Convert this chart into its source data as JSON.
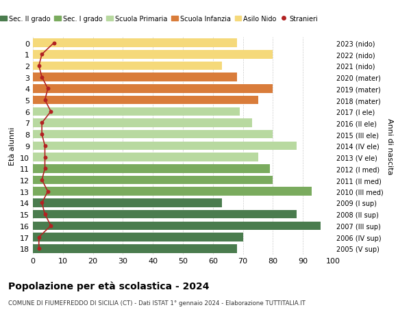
{
  "ages": [
    18,
    17,
    16,
    15,
    14,
    13,
    12,
    11,
    10,
    9,
    8,
    7,
    6,
    5,
    4,
    3,
    2,
    1,
    0
  ],
  "right_labels": [
    "2005 (V sup)",
    "2006 (IV sup)",
    "2007 (III sup)",
    "2008 (II sup)",
    "2009 (I sup)",
    "2010 (III med)",
    "2011 (II med)",
    "2012 (I med)",
    "2013 (V ele)",
    "2014 (IV ele)",
    "2015 (III ele)",
    "2016 (II ele)",
    "2017 (I ele)",
    "2018 (mater)",
    "2019 (mater)",
    "2020 (mater)",
    "2021 (nido)",
    "2022 (nido)",
    "2023 (nido)"
  ],
  "bar_values": [
    68,
    70,
    96,
    88,
    63,
    93,
    80,
    79,
    75,
    88,
    80,
    73,
    69,
    75,
    80,
    68,
    63,
    80,
    68
  ],
  "stranieri_values": [
    2,
    2,
    6,
    4,
    3,
    5,
    3,
    4,
    4,
    4,
    3,
    3,
    6,
    4,
    5,
    3,
    2,
    3,
    7
  ],
  "bar_colors": [
    "#4a7c4e",
    "#4a7c4e",
    "#4a7c4e",
    "#4a7c4e",
    "#4a7c4e",
    "#7aab5e",
    "#7aab5e",
    "#7aab5e",
    "#b8d9a0",
    "#b8d9a0",
    "#b8d9a0",
    "#b8d9a0",
    "#b8d9a0",
    "#d97c3a",
    "#d97c3a",
    "#d97c3a",
    "#f5d97a",
    "#f5d97a",
    "#f5d97a"
  ],
  "legend_labels": [
    "Sec. II grado",
    "Sec. I grado",
    "Scuola Primaria",
    "Scuola Infanzia",
    "Asilo Nido",
    "Stranieri"
  ],
  "legend_colors": [
    "#4a7c4e",
    "#7aab5e",
    "#b8d9a0",
    "#d97c3a",
    "#f5d97a",
    "#b22222"
  ],
  "stranieri_color": "#b22222",
  "ylabel": "Età alunni",
  "right_ylabel": "Anni di nascita",
  "title": "Popolazione per età scolastica - 2024",
  "subtitle": "COMUNE DI FIUMEFREDDO DI SICILIA (CT) - Dati ISTAT 1° gennaio 2024 - Elaborazione TUTTITALIA.IT",
  "xlim": [
    0,
    100
  ],
  "bg_color": "#ffffff",
  "grid_color": "#cccccc"
}
